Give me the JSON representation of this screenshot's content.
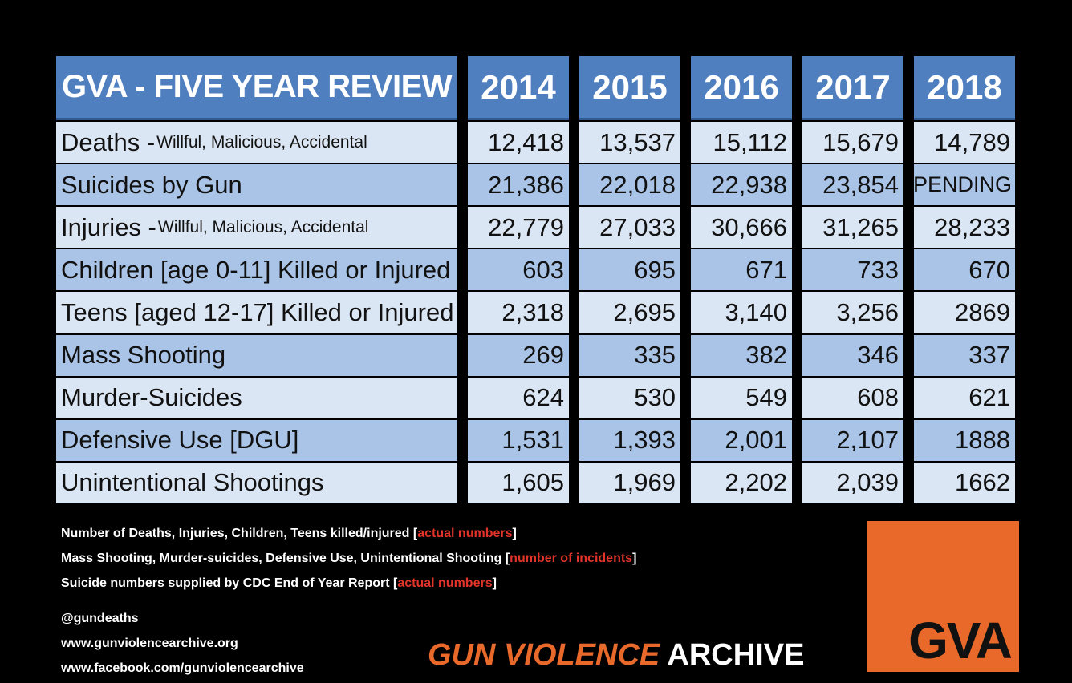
{
  "chart_data": {
    "type": "table",
    "title": "GVA - FIVE YEAR REVIEW",
    "columns": [
      "2014",
      "2015",
      "2016",
      "2017",
      "2018"
    ],
    "rows": [
      {
        "label": "Deaths - ",
        "sub": "Willful, Malicious, Accidental",
        "values": [
          "12,418",
          "13,537",
          "15,112",
          "15,679",
          "14,789"
        ]
      },
      {
        "label": "Suicides by Gun",
        "sub": "",
        "values": [
          "21,386",
          "22,018",
          "22,938",
          "23,854",
          "PENDING"
        ]
      },
      {
        "label": "Injuries - ",
        "sub": "Willful, Malicious, Accidental",
        "values": [
          "22,779",
          "27,033",
          "30,666",
          "31,265",
          "28,233"
        ]
      },
      {
        "label": "Children [age 0-11] Killed or Injured",
        "sub": "",
        "values": [
          "603",
          "695",
          "671",
          "733",
          "670"
        ]
      },
      {
        "label": "Teens [aged 12-17] Killed or Injured",
        "sub": "",
        "values": [
          "2,318",
          "2,695",
          "3,140",
          "3,256",
          "2869"
        ]
      },
      {
        "label": "Mass Shooting",
        "sub": "",
        "values": [
          "269",
          "335",
          "382",
          "346",
          "337"
        ]
      },
      {
        "label": "Murder-Suicides",
        "sub": "",
        "values": [
          "624",
          "530",
          "549",
          "608",
          "621"
        ]
      },
      {
        "label": "Defensive Use [DGU]",
        "sub": "",
        "values": [
          "1,531",
          "1,393",
          "2,001",
          "2,107",
          "1888"
        ]
      },
      {
        "label": "Unintentional Shootings",
        "sub": "",
        "values": [
          "1,605",
          "1,969",
          "2,202",
          "2,039",
          "1662"
        ]
      }
    ]
  },
  "notes": [
    {
      "text": "Number of Deaths, Injuries, Children, Teens  killed/injured [",
      "red": "actual numbers",
      "end": "]"
    },
    {
      "text": "Mass Shooting, Murder-suicides, Defensive Use, Unintentional Shooting [",
      "red": "number of incidents",
      "end": "]"
    },
    {
      "text": "Suicide numbers supplied by CDC End of Year Report [",
      "red": "actual numbers",
      "end": "]"
    }
  ],
  "social": {
    "handle": "@gundeaths",
    "website": "www.gunviolencearchive.org",
    "facebook": "www.facebook.com/gunviolencearchive"
  },
  "brand": {
    "part1": "GUN VIOLENCE",
    "part2": "ARCHIVE",
    "logo_text": "GVA"
  },
  "colors": {
    "header_blue": "#4f7fbf",
    "row_light": "#dbe6f4",
    "row_dark": "#a9c4e6",
    "accent_orange": "#e8692a",
    "note_red": "#e0342a"
  }
}
